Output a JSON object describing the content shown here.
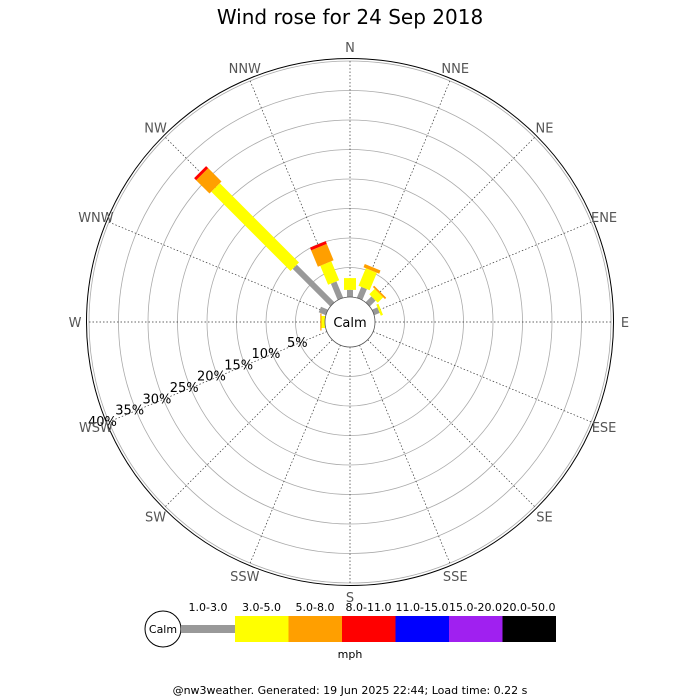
{
  "chart_data": {
    "type": "windrose",
    "title": "Wind rose for 24 Sep 2018",
    "center_label": "Calm",
    "directions": [
      "N",
      "NNE",
      "NE",
      "ENE",
      "E",
      "ESE",
      "SE",
      "SSE",
      "S",
      "SSW",
      "SW",
      "WSW",
      "W",
      "WNW",
      "NW",
      "NNW"
    ],
    "ring_values": [
      5,
      10,
      15,
      20,
      25,
      30,
      35,
      40
    ],
    "ring_labels": [
      "5%",
      "10%",
      "15%",
      "20%",
      "25%",
      "30%",
      "35%",
      "40%"
    ],
    "speed_bins": [
      {
        "label": "1.0-3.0",
        "color": "#999999"
      },
      {
        "label": "3.0-5.0",
        "color": "#ffff00"
      },
      {
        "label": "5.0-8.0",
        "color": "#ff9f00"
      },
      {
        "label": "8.0-11.0",
        "color": "#ff0000"
      },
      {
        "label": "11.0-15.0",
        "color": "#0000ff"
      },
      {
        "label": "15.0-20.0",
        "color": "#a020f0"
      },
      {
        "label": "20.0-50.0",
        "color": "#000000"
      }
    ],
    "units": "mph",
    "series": [
      {
        "direction": "N",
        "segments": [
          1.2,
          2.0,
          0.0,
          0.0,
          0,
          0,
          0
        ]
      },
      {
        "direction": "NNE",
        "segments": [
          2.0,
          3.2,
          0.6,
          0.0,
          0,
          0,
          0
        ]
      },
      {
        "direction": "NE",
        "segments": [
          1.4,
          1.3,
          0.3,
          0.0,
          0,
          0,
          0
        ]
      },
      {
        "direction": "ENE",
        "segments": [
          1.0,
          0.4,
          0.0,
          0.0,
          0,
          0,
          0
        ]
      },
      {
        "direction": "W",
        "segments": [
          0.0,
          0.6,
          0.2,
          0.0,
          0,
          0,
          0
        ]
      },
      {
        "direction": "WNW",
        "segments": [
          1.3,
          0.0,
          0.0,
          0.0,
          0,
          0,
          0
        ]
      },
      {
        "direction": "NW",
        "segments": [
          9.0,
          19.0,
          3.2,
          0.5,
          0,
          0,
          0
        ]
      },
      {
        "direction": "NNW",
        "segments": [
          3.0,
          3.5,
          3.0,
          0.5,
          0,
          0,
          0
        ]
      }
    ]
  },
  "footer": "@nw3weather. Generated: 19 Jun 2025 22:44; Load time: 0.22 s"
}
